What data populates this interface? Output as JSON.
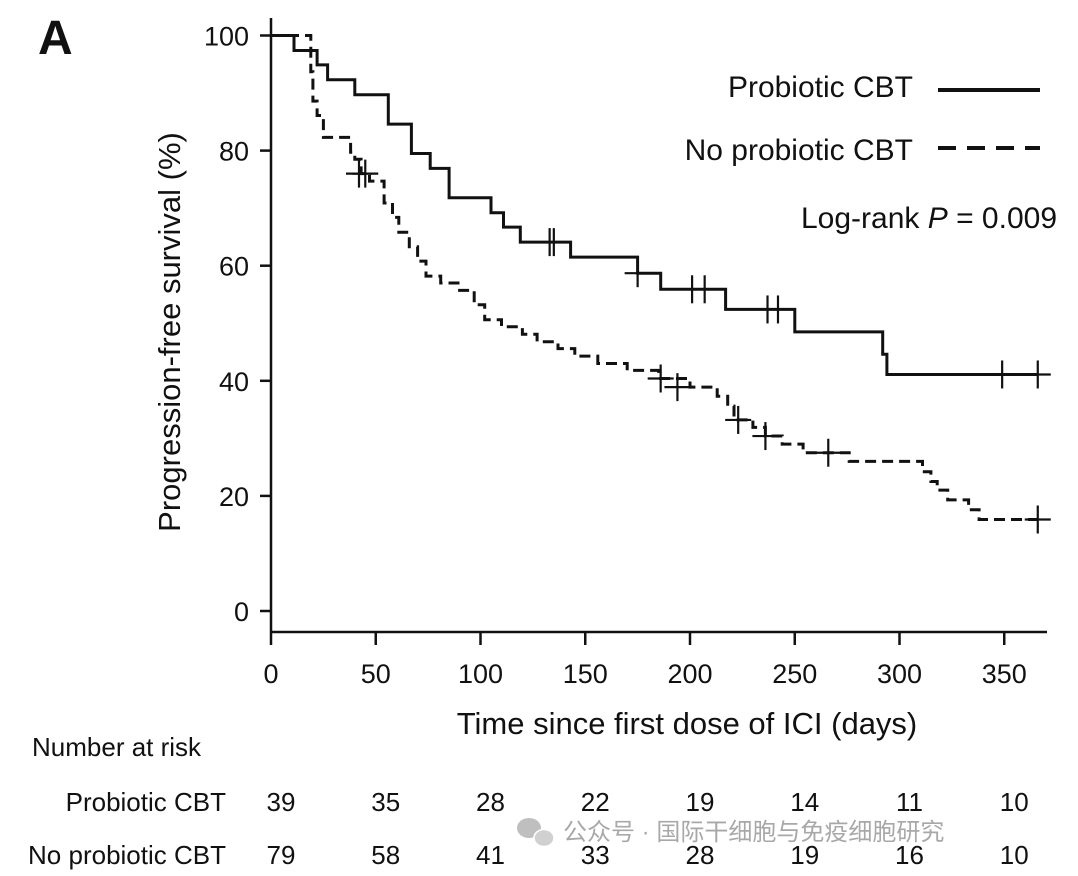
{
  "panel_label": "A",
  "chart_data": {
    "type": "line",
    "subtype": "kaplan-meier",
    "ylabel": "Progression-free survival (%)",
    "xlabel": "Time since first dose of ICI (days)",
    "xlim": [
      0,
      370
    ],
    "ylim": [
      0,
      100
    ],
    "xticks": [
      0,
      50,
      100,
      150,
      200,
      250,
      300,
      350
    ],
    "yticks": [
      0,
      20,
      40,
      60,
      80,
      100
    ],
    "legend_position": "top-right",
    "annotation": {
      "prefix": "Log-rank ",
      "italic": "P",
      "suffix": " = 0.009"
    },
    "series": [
      {
        "name": "Probiotic CBT",
        "style": "solid",
        "steps": [
          [
            0,
            100
          ],
          [
            11,
            97.4
          ],
          [
            22,
            94.9
          ],
          [
            27,
            92.3
          ],
          [
            40,
            89.7
          ],
          [
            56,
            84.6
          ],
          [
            67,
            79.5
          ],
          [
            76,
            76.9
          ],
          [
            85,
            71.8
          ],
          [
            105,
            69.2
          ],
          [
            111,
            66.7
          ],
          [
            119,
            64.1
          ],
          [
            143,
            61.5
          ],
          [
            175,
            58.7
          ],
          [
            186,
            55.9
          ],
          [
            217,
            52.4
          ],
          [
            250,
            48.5
          ],
          [
            292,
            44.6
          ],
          [
            294,
            41.1
          ],
          [
            366,
            41.1
          ]
        ],
        "censored": [
          [
            133,
            64.1
          ],
          [
            135,
            64.1
          ],
          [
            175,
            58.7
          ],
          [
            201,
            55.9
          ],
          [
            207,
            55.9
          ],
          [
            237,
            52.4
          ],
          [
            242,
            52.4
          ],
          [
            349,
            41.1
          ],
          [
            366,
            41.1
          ]
        ]
      },
      {
        "name": "No probiotic CBT",
        "style": "dashed",
        "steps": [
          [
            0,
            100
          ],
          [
            19,
            93.7
          ],
          [
            20,
            88.6
          ],
          [
            22,
            86.1
          ],
          [
            25,
            82.3
          ],
          [
            38,
            79.7
          ],
          [
            40,
            78.5
          ],
          [
            43,
            76
          ],
          [
            47,
            74.7
          ],
          [
            54,
            70.9
          ],
          [
            58,
            68.4
          ],
          [
            61,
            65.8
          ],
          [
            66,
            63.3
          ],
          [
            70,
            60.8
          ],
          [
            74,
            58.2
          ],
          [
            81,
            57
          ],
          [
            90,
            55.7
          ],
          [
            97,
            53.2
          ],
          [
            102,
            50.6
          ],
          [
            110,
            49.4
          ],
          [
            120,
            48.1
          ],
          [
            127,
            46.8
          ],
          [
            137,
            45.6
          ],
          [
            145,
            44.3
          ],
          [
            156,
            43
          ],
          [
            170,
            41.8
          ],
          [
            185,
            40.4
          ],
          [
            200,
            38.9
          ],
          [
            213,
            37.3
          ],
          [
            218,
            35.6
          ],
          [
            221,
            33.2
          ],
          [
            230,
            31.9
          ],
          [
            236,
            30.4
          ],
          [
            244,
            29
          ],
          [
            254,
            27.5
          ],
          [
            266,
            27.5
          ],
          [
            276,
            26
          ],
          [
            306,
            26
          ],
          [
            311,
            24.2
          ],
          [
            315,
            22.5
          ],
          [
            318,
            21
          ],
          [
            323,
            19.3
          ],
          [
            333,
            17.6
          ],
          [
            338,
            15.9
          ],
          [
            366,
            15.9
          ]
        ],
        "censored": [
          [
            42,
            76
          ],
          [
            45,
            76
          ],
          [
            186,
            40.4
          ],
          [
            194,
            38.9
          ],
          [
            223,
            33.2
          ],
          [
            236,
            30.4
          ],
          [
            266,
            27.5
          ],
          [
            366,
            15.9
          ]
        ]
      }
    ]
  },
  "risk_table": {
    "title": "Number at risk",
    "rows": [
      {
        "label": "Probiotic CBT",
        "values": [
          "39",
          "35",
          "28",
          "22",
          "19",
          "14",
          "11",
          "10"
        ]
      },
      {
        "label": "No probiotic CBT",
        "values": [
          "79",
          "58",
          "41",
          "33",
          "28",
          "19",
          "16",
          "10"
        ]
      }
    ]
  },
  "watermark": "公众号 · 国际干细胞与免疫细胞研究"
}
